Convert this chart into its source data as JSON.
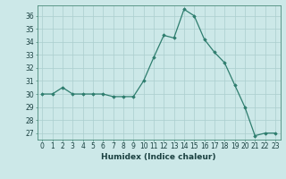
{
  "x": [
    0,
    1,
    2,
    3,
    4,
    5,
    6,
    7,
    8,
    9,
    10,
    11,
    12,
    13,
    14,
    15,
    16,
    17,
    18,
    19,
    20,
    21,
    22,
    23
  ],
  "y": [
    30,
    30,
    30.5,
    30,
    30,
    30,
    30,
    29.8,
    29.8,
    29.8,
    31,
    32.8,
    34.5,
    34.3,
    36.5,
    36.0,
    34.2,
    33.2,
    32.4,
    30.7,
    29.0,
    26.8,
    27.0,
    27.0
  ],
  "line_color": "#2e7d6e",
  "marker": "D",
  "marker_size": 1.8,
  "bg_color": "#cce8e8",
  "grid_color": "#aacece",
  "xlabel": "Humidex (Indice chaleur)",
  "xlim": [
    -0.5,
    23.5
  ],
  "ylim": [
    26.5,
    36.8
  ],
  "yticks": [
    27,
    28,
    29,
    30,
    31,
    32,
    33,
    34,
    35,
    36
  ],
  "xticks": [
    0,
    1,
    2,
    3,
    4,
    5,
    6,
    7,
    8,
    9,
    10,
    11,
    12,
    13,
    14,
    15,
    16,
    17,
    18,
    19,
    20,
    21,
    22,
    23
  ],
  "tick_label_fontsize": 5.5,
  "xlabel_fontsize": 6.5,
  "spine_color": "#4a8a7a",
  "text_color": "#1a4040"
}
